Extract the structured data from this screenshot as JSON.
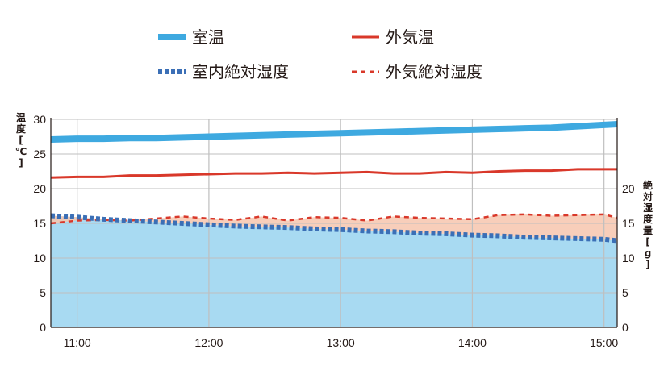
{
  "chart_data": {
    "type": "line",
    "legend_position": "top",
    "grid": true,
    "x": [
      "10:48",
      "11:00",
      "11:12",
      "11:24",
      "11:36",
      "11:48",
      "12:00",
      "12:12",
      "12:24",
      "12:36",
      "12:48",
      "13:00",
      "13:12",
      "13:24",
      "13:36",
      "13:48",
      "14:00",
      "14:12",
      "14:24",
      "14:36",
      "14:48",
      "15:00",
      "15:06"
    ],
    "x_ticks": [
      "11:00",
      "12:00",
      "13:00",
      "14:00",
      "15:00"
    ],
    "left_axis": {
      "label_chars": [
        "温",
        "度",
        "[",
        "℃",
        "]"
      ],
      "ylim": [
        0,
        30
      ],
      "ticks": [
        "0",
        "5",
        "10",
        "15",
        "20",
        "25",
        "30"
      ]
    },
    "right_axis": {
      "label_chars": [
        "絶",
        "対",
        "湿",
        "度",
        "量",
        "[",
        "g",
        "]"
      ],
      "ylim": [
        0,
        30
      ],
      "ticks": [
        "0",
        "5",
        "10",
        "15",
        "20"
      ]
    },
    "series": [
      {
        "name": "室温",
        "axis": "left",
        "style": "thick-solid",
        "color": "#3ea9e0",
        "values": [
          27.1,
          27.2,
          27.2,
          27.3,
          27.3,
          27.4,
          27.5,
          27.6,
          27.7,
          27.8,
          27.9,
          28.0,
          28.1,
          28.2,
          28.3,
          28.4,
          28.5,
          28.6,
          28.7,
          28.8,
          29.0,
          29.2,
          29.3
        ]
      },
      {
        "name": "外気温",
        "axis": "left",
        "style": "solid",
        "color": "#d9382a",
        "values": [
          21.6,
          21.7,
          21.7,
          21.9,
          21.9,
          22.0,
          22.1,
          22.2,
          22.2,
          22.3,
          22.2,
          22.3,
          22.4,
          22.2,
          22.2,
          22.4,
          22.3,
          22.5,
          22.6,
          22.6,
          22.8,
          22.8,
          22.8
        ]
      },
      {
        "name": "室内絶対湿度",
        "axis": "right",
        "style": "thick-dotted",
        "color": "#3b6fb6",
        "values": [
          16.1,
          15.9,
          15.6,
          15.4,
          15.2,
          15.0,
          14.8,
          14.6,
          14.5,
          14.4,
          14.2,
          14.1,
          13.9,
          13.8,
          13.6,
          13.5,
          13.3,
          13.2,
          13.0,
          12.9,
          12.8,
          12.7,
          12.5
        ]
      },
      {
        "name": "外気絶対湿度",
        "axis": "right",
        "style": "dashed",
        "color": "#d9382a",
        "values": [
          15.0,
          15.4,
          15.5,
          15.4,
          15.7,
          16.0,
          15.7,
          15.5,
          16.0,
          15.4,
          15.9,
          15.8,
          15.4,
          16.0,
          15.8,
          15.7,
          15.6,
          16.2,
          16.3,
          16.1,
          16.2,
          16.3,
          15.8
        ]
      }
    ],
    "fills": [
      {
        "under": "室内絶対湿度",
        "color": "#a8daf2"
      },
      {
        "between": [
          "室内絶対湿度",
          "外気絶対湿度"
        ],
        "color": "#f7c6ae"
      }
    ]
  }
}
